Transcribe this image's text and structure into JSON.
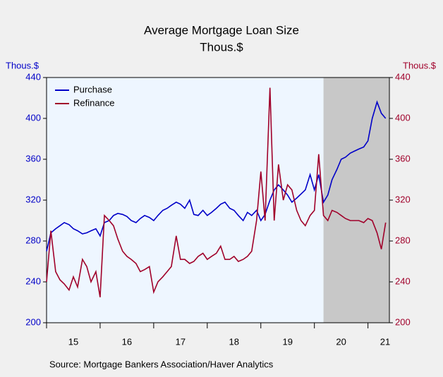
{
  "chart_data": {
    "type": "line",
    "title": "Average Mortgage Loan Size",
    "subtitle": "Thous.$",
    "ylabel": "Thous.$",
    "y2label": "Thous.$",
    "source": "Source:  Mortgage Bankers Association/Haver Analytics",
    "x": [
      15.0,
      15.08,
      15.17,
      15.25,
      15.33,
      15.42,
      15.5,
      15.58,
      15.67,
      15.75,
      15.83,
      15.92,
      16.0,
      16.08,
      16.17,
      16.25,
      16.33,
      16.42,
      16.5,
      16.58,
      16.67,
      16.75,
      16.83,
      16.92,
      17.0,
      17.08,
      17.17,
      17.25,
      17.33,
      17.42,
      17.5,
      17.58,
      17.67,
      17.75,
      17.83,
      17.92,
      18.0,
      18.08,
      18.17,
      18.25,
      18.33,
      18.42,
      18.5,
      18.58,
      18.67,
      18.75,
      18.83,
      18.92,
      19.0,
      19.08,
      19.17,
      19.25,
      19.33,
      19.42,
      19.5,
      19.58,
      19.67,
      19.75,
      19.83,
      19.92,
      20.0,
      20.08,
      20.17,
      20.25,
      20.33,
      20.42,
      20.5,
      20.58,
      20.67,
      20.75,
      20.83,
      20.92,
      21.0,
      21.08,
      21.17,
      21.25,
      21.33
    ],
    "series": [
      {
        "name": "Purchase",
        "color": "#0000c8",
        "axis": "y",
        "values": [
          270,
          288,
          292,
          295,
          298,
          296,
          292,
          290,
          287,
          288,
          290,
          292,
          285,
          298,
          300,
          305,
          307,
          306,
          304,
          300,
          298,
          302,
          305,
          303,
          300,
          305,
          310,
          312,
          315,
          318,
          316,
          312,
          320,
          306,
          305,
          310,
          305,
          308,
          312,
          316,
          318,
          312,
          310,
          305,
          300,
          308,
          305,
          310,
          300,
          306,
          320,
          330,
          335,
          330,
          325,
          318,
          322,
          326,
          330,
          345,
          330,
          345,
          318,
          325,
          340,
          350,
          360,
          362,
          366,
          368,
          370,
          372,
          378,
          400,
          416,
          405,
          400
        ]
      },
      {
        "name": "Refinance",
        "color": "#a0002a",
        "axis": "y2",
        "values": [
          240,
          290,
          250,
          242,
          238,
          232,
          245,
          235,
          262,
          255,
          240,
          250,
          225,
          305,
          300,
          295,
          282,
          270,
          265,
          262,
          258,
          250,
          252,
          255,
          230,
          240,
          245,
          250,
          255,
          285,
          262,
          262,
          258,
          260,
          265,
          268,
          262,
          265,
          268,
          275,
          262,
          262,
          265,
          260,
          262,
          265,
          270,
          300,
          348,
          300,
          430,
          300,
          355,
          320,
          335,
          330,
          310,
          300,
          295,
          305,
          310,
          365,
          305,
          300,
          310,
          308,
          305,
          302,
          300,
          300,
          300,
          298,
          302,
          300,
          288,
          272,
          298
        ]
      }
    ],
    "xlim": [
      15,
      21.4
    ],
    "xticks": [
      {
        "value": 15,
        "label": "15"
      },
      {
        "value": 16,
        "label": "16"
      },
      {
        "value": 17,
        "label": "17"
      },
      {
        "value": 18,
        "label": "18"
      },
      {
        "value": 19,
        "label": "19"
      },
      {
        "value": 20,
        "label": "20"
      },
      {
        "value": 21,
        "label": "21"
      }
    ],
    "ylim": [
      200,
      440
    ],
    "yticks": [
      200,
      240,
      280,
      320,
      360,
      400,
      440
    ],
    "y2lim": [
      200,
      440
    ],
    "y2ticks": [
      200,
      240,
      280,
      320,
      360,
      400,
      440
    ],
    "shade": [
      20.17,
      21.4
    ],
    "legend": "upper left"
  }
}
